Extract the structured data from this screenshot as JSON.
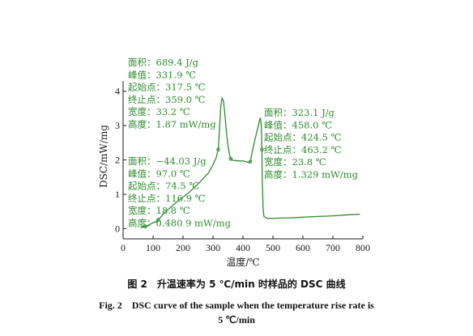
{
  "chart_data": {
    "type": "line",
    "xlabel": "温度/℃",
    "ylabel": "DSC/mW/mg",
    "xlim": [
      0,
      800
    ],
    "ylim": [
      -0.3,
      4.3
    ],
    "x_ticks": [
      "0",
      "100",
      "200",
      "300",
      "400",
      "500",
      "600",
      "700",
      "800"
    ],
    "y_ticks": [
      "0",
      "1",
      "2",
      "3",
      "4"
    ],
    "grid": false,
    "series": [
      {
        "color": "#2e8b2e",
        "x": [
          60,
          74.5,
          90,
          97,
          110,
          116.9,
          140,
          180,
          220,
          250,
          285,
          300,
          310,
          317.5,
          322,
          326,
          330,
          335,
          340,
          345,
          350,
          355,
          359,
          365,
          375,
          390,
          400,
          410,
          420,
          424.5,
          430,
          440,
          450,
          455,
          458,
          461,
          463.2,
          464,
          467,
          470,
          480,
          500,
          550,
          600,
          650,
          700,
          750,
          790
        ],
        "y": [
          0.02,
          0.06,
          0.12,
          0.16,
          0.2,
          0.25,
          0.48,
          0.78,
          1.05,
          1.3,
          1.62,
          1.86,
          2.05,
          2.3,
          2.95,
          3.55,
          3.8,
          3.72,
          3.3,
          2.8,
          2.4,
          2.15,
          2.03,
          1.99,
          1.98,
          1.97,
          1.97,
          1.95,
          1.92,
          1.95,
          2.2,
          2.6,
          2.95,
          3.15,
          3.23,
          3.0,
          2.3,
          1.5,
          0.6,
          0.35,
          0.3,
          0.3,
          0.31,
          0.33,
          0.35,
          0.37,
          0.4,
          0.42
        ]
      }
    ],
    "markers": [
      {
        "x": 74.5,
        "y": 0.06
      },
      {
        "x": 116.9,
        "y": 0.25
      },
      {
        "x": 317.5,
        "y": 2.3
      },
      {
        "x": 359,
        "y": 2.03
      },
      {
        "x": 424.5,
        "y": 1.95
      },
      {
        "x": 463.2,
        "y": 2.3
      }
    ],
    "annotations": {
      "peak1": [
        "面积：689.4 J/g",
        "峰值：331.9 ℃",
        "起始点：317.5 ℃",
        "终止点：359.0 ℃",
        "宽度：33.2 ℃",
        "高度：1.87 mW/mg"
      ],
      "peak2": [
        "面积：323.1 J/g",
        "峰值：458.0 ℃",
        "起始点：424.5 ℃",
        "终止点：463.2 ℃",
        "宽度：23.8 ℃",
        "高度：1.329 mW/mg"
      ],
      "peak3": [
        "面积：−44.03 J/g",
        "峰值：97.0 ℃",
        "起始点：74.5 ℃",
        "终止点：116.9 ℃",
        "宽度：18.8 ℃",
        "高度：0.480 9 mW/mg"
      ]
    }
  },
  "caption": {
    "cn": "图 2　升温速率为 5 ℃/min 时样品的 DSC 曲线",
    "en_line1": "Fig. 2　DSC curve of the sample when the temperature rise rate is",
    "en_line2": "5 ℃/min"
  }
}
